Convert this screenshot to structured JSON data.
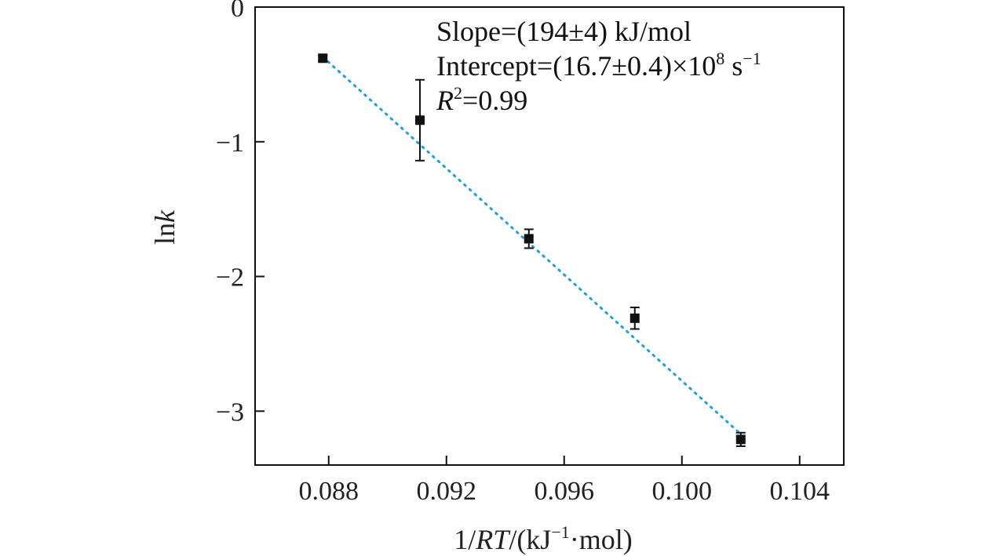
{
  "chart_data": {
    "type": "scatter",
    "title": "",
    "xlabel_parts": {
      "pre": "1/",
      "italic": "RT",
      "mid": "/(kJ",
      "sup": "−1",
      "post": "·mol)"
    },
    "ylabel_parts": {
      "pre": "ln",
      "italic": "k"
    },
    "xlim": [
      0.0855,
      0.1055
    ],
    "ylim": [
      -3.4,
      0
    ],
    "x_ticks": [
      0.088,
      0.092,
      0.096,
      0.1,
      0.104
    ],
    "x_tick_labels": [
      "0.088",
      "0.092",
      "0.096",
      "0.100",
      "0.104"
    ],
    "y_ticks": [
      0,
      -1,
      -2,
      -3
    ],
    "y_tick_labels": [
      "0",
      "−1",
      "−2",
      "−3"
    ],
    "grid": false,
    "series": [
      {
        "name": "data",
        "x": [
          0.0878,
          0.0911,
          0.0948,
          0.0984,
          0.102
        ],
        "y": [
          -0.38,
          -0.84,
          -1.72,
          -2.31,
          -3.21
        ],
        "yerr": [
          0.02,
          0.3,
          0.07,
          0.08,
          0.05
        ],
        "marker": "square",
        "color": "#111111"
      }
    ],
    "fit_line": {
      "x": [
        0.0878,
        0.102
      ],
      "y": [
        -0.37,
        -3.17
      ],
      "color": "#1ea0dc",
      "style": "dotted"
    },
    "annotations": {
      "slope": "Slope=(194±4) kJ/mol",
      "intercept_text": "Intercept=(16.7±0.4)×10",
      "intercept_sup1": "8",
      "intercept_unit": " s",
      "intercept_sup2": "−1",
      "r2_italic": "R",
      "r2_sup": "2",
      "r2_value": "=0.99"
    }
  }
}
